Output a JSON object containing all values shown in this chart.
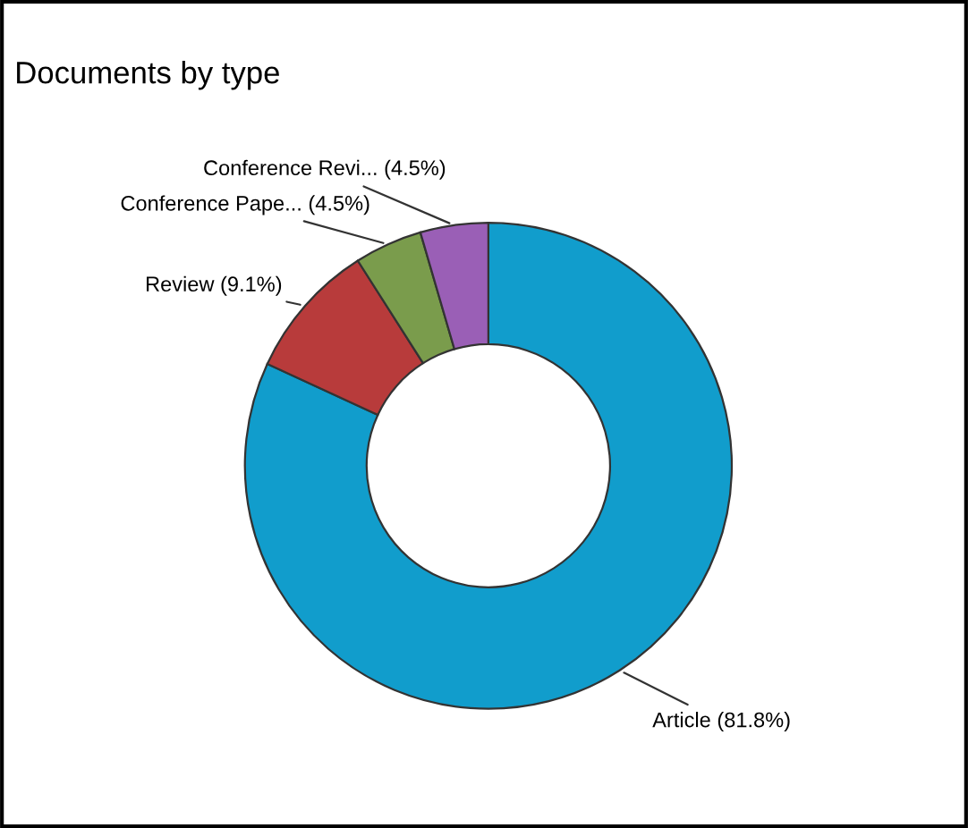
{
  "chart_data": {
    "type": "donut",
    "title": "Documents by type",
    "categories": [
      "Article",
      "Review",
      "Conference Pape...",
      "Conference Revi..."
    ],
    "values": [
      81.8,
      9.1,
      4.5,
      4.5
    ],
    "value_labels": [
      "(81.8%)",
      "(9.1%)",
      "(4.5%)",
      "(4.5%)"
    ],
    "colors": [
      "#119dcc",
      "#b83b3b",
      "#7a9c4c",
      "#9a5fb6"
    ],
    "legend": false
  }
}
